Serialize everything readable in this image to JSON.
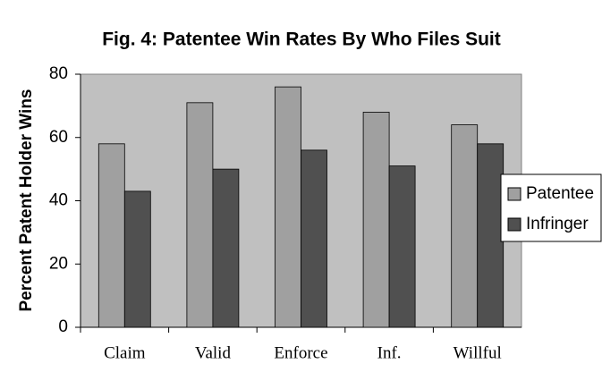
{
  "chart_data": {
    "type": "bar",
    "title": "Fig. 4:  Patentee Win Rates By Who Files Suit",
    "y_label": "Percent Patent Holder Wins",
    "categories": [
      "Claim",
      "Valid",
      "Enforce",
      "Inf.",
      "Willful"
    ],
    "series": [
      {
        "name": "Patentee",
        "color": "#a0a0a0",
        "values": [
          58,
          71,
          76,
          68,
          64
        ]
      },
      {
        "name": "Infringer",
        "color": "#505050",
        "values": [
          43,
          50,
          56,
          51,
          58
        ]
      }
    ],
    "ylim": [
      0,
      80
    ],
    "yticks": [
      0,
      20,
      40,
      60,
      80
    ],
    "grid": false,
    "legend": "right"
  }
}
